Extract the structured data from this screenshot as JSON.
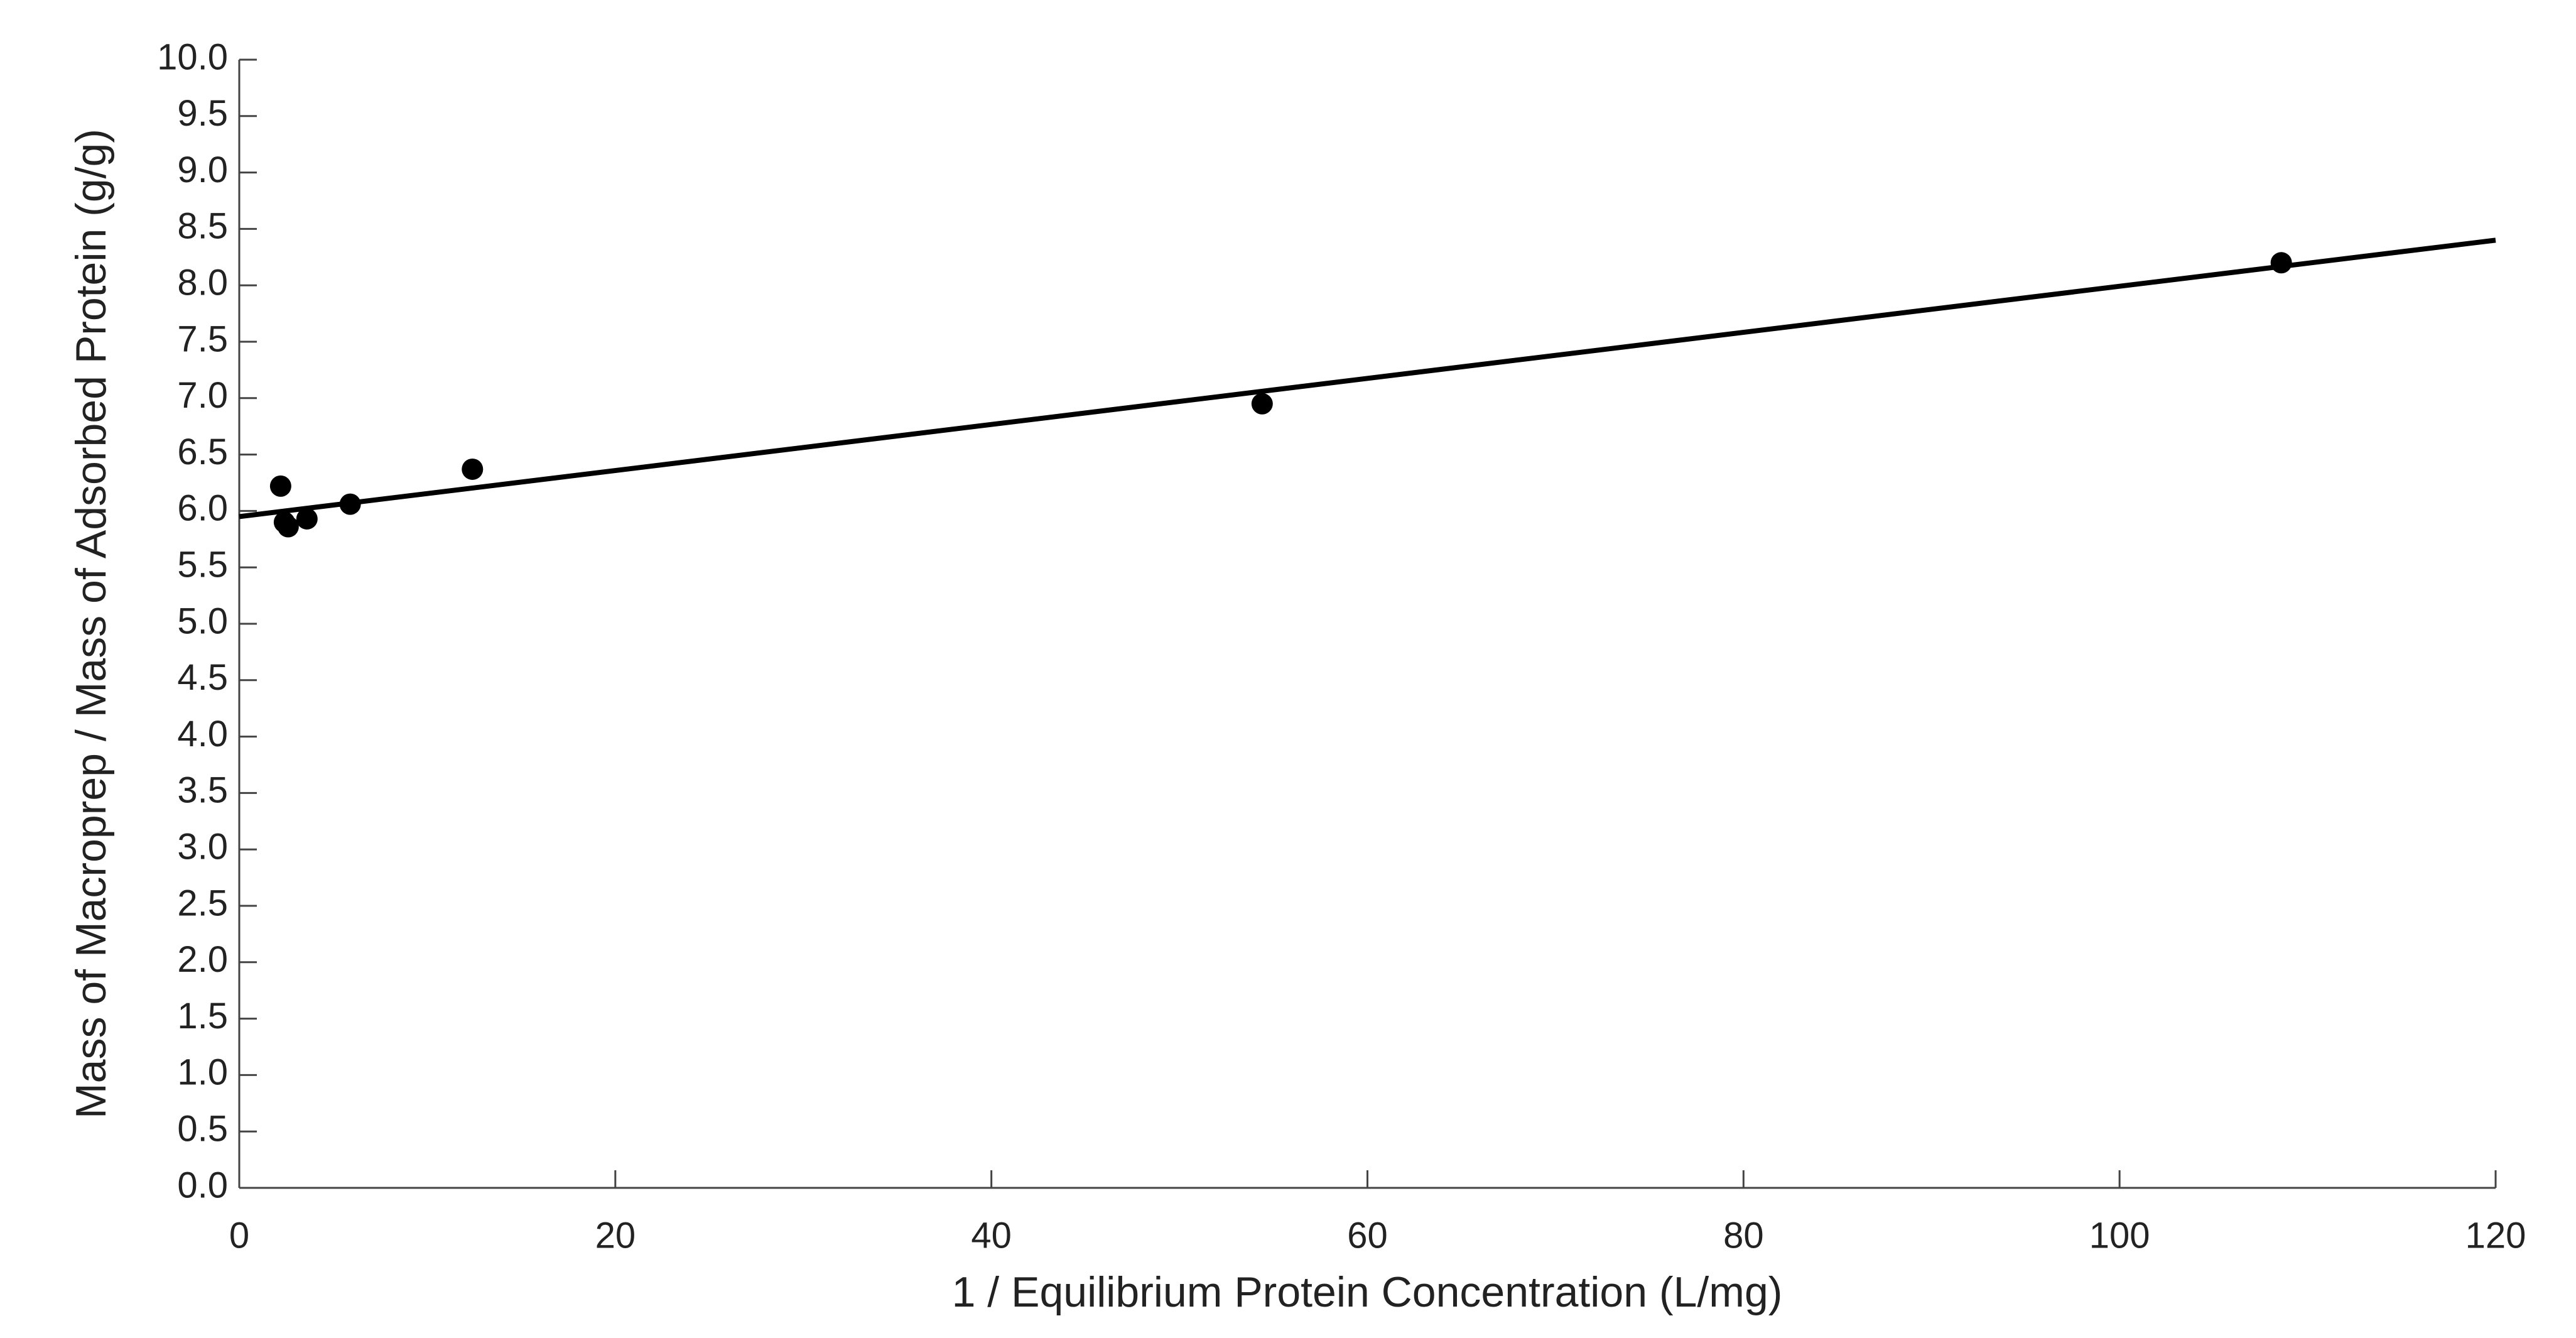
{
  "chart_data": {
    "type": "scatter",
    "xlabel": "1 / Equilibrium Protein Concentration (L/mg)",
    "ylabel": "Mass of Macroprep / Mass of Adsorbed Protein (g/g)",
    "points": {
      "x": [
        2.2,
        2.4,
        2.6,
        3.6,
        5.9,
        12.4,
        54.4,
        108.6
      ],
      "y": [
        6.22,
        5.9,
        5.86,
        5.93,
        6.06,
        6.37,
        6.95,
        8.2
      ],
      "color": "#000000"
    },
    "fit_line": {
      "x": [
        0,
        120
      ],
      "y": [
        5.95,
        8.4
      ],
      "color": "#000000"
    },
    "xlim": [
      0,
      120
    ],
    "xticks": [
      0,
      20,
      40,
      60,
      80,
      100,
      120
    ],
    "ylim": [
      0,
      10
    ],
    "yticks": [
      {
        "value": 0,
        "label": "0.0"
      },
      {
        "value": 0.5,
        "label": "0.5"
      },
      {
        "value": 1,
        "label": "1.0"
      },
      {
        "value": 1.5,
        "label": "1.5"
      },
      {
        "value": 2,
        "label": "2.0"
      },
      {
        "value": 2.5,
        "label": "2.5"
      },
      {
        "value": 3,
        "label": "3.0"
      },
      {
        "value": 3.5,
        "label": "3.5"
      },
      {
        "value": 4,
        "label": "4.0"
      },
      {
        "value": 4.5,
        "label": "4.5"
      },
      {
        "value": 5,
        "label": "5.0"
      },
      {
        "value": 5.5,
        "label": "5.5"
      },
      {
        "value": 6,
        "label": "6.0"
      },
      {
        "value": 6.5,
        "label": "6.5"
      },
      {
        "value": 7,
        "label": "7.0"
      },
      {
        "value": 7.5,
        "label": "7.5"
      },
      {
        "value": 8,
        "label": "8.0"
      },
      {
        "value": 8.5,
        "label": "8.5"
      },
      {
        "value": 9,
        "label": "9.0"
      },
      {
        "value": 9.5,
        "label": "9.5"
      },
      {
        "value": 10,
        "label": "10.0"
      }
    ]
  }
}
